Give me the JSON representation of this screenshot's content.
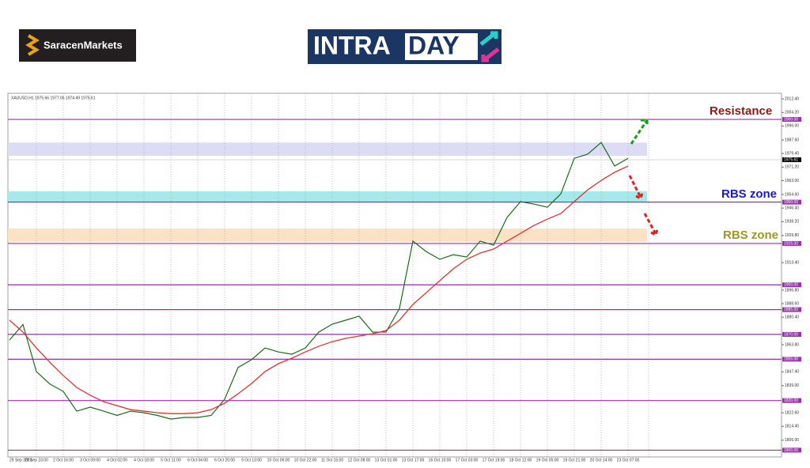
{
  "header": {
    "brand": "SaracenMarkets",
    "banner_a": "INTRA",
    "banner_b": "DAY"
  },
  "chart_data": {
    "type": "line",
    "title": "XAUUSD,H1 1975.66 1977.05 1974.49 1975.61",
    "categories": [
      "29 Sep 2023",
      null,
      "29 Sep 23:00",
      null,
      "2 Oct 16:00",
      null,
      "3 Oct 09:00",
      null,
      "4 Oct 02:00",
      null,
      "4 Oct 18:00",
      null,
      "5 Oct 11:00",
      null,
      "6 Oct 04:00",
      null,
      "6 Oct 20:00",
      null,
      "9 Oct 13:00",
      null,
      "10 Oct 06:00",
      null,
      "10 Oct 22:00",
      null,
      "11 Oct 15:00",
      null,
      "12 Oct 08:00",
      null,
      "13 Oct 01:00",
      null,
      "13 Oct 17:00",
      null,
      "16 Oct 10:00",
      null,
      "17 Oct 03:00",
      null,
      "17 Oct 19:00",
      null,
      "18 Oct 12:00",
      null,
      "19 Oct 05:00",
      null,
      "19 Oct 21:00",
      null,
      "20 Oct 14:00",
      null,
      "23 Oct 07:00"
    ],
    "series": [
      {
        "color": "#1a6b1a",
        "values": [
          1866.6,
          1876,
          1847.5,
          1840,
          1835.5,
          1823.6,
          1826,
          1823.6,
          1821,
          1823.6,
          1822.6,
          1821,
          1818.8,
          1819.8,
          1819.8,
          1821,
          1830.8,
          1850,
          1854.7,
          1861.8,
          1859.4,
          1858,
          1861.8,
          1871.4,
          1876.2,
          1878.6,
          1881,
          1871.4,
          1871.4,
          1885.7,
          1926.4,
          1920,
          1915.4,
          1918.2,
          1916.8,
          1926.4,
          1924,
          1940.7,
          1950.3,
          1948.8,
          1946.9,
          1955,
          1976.5,
          1979,
          1986.1,
          1971.8,
          1976.5
        ]
      },
      {
        "color": "#e03030",
        "values": [
          1878.6,
          1871.4,
          1861.8,
          1853.2,
          1845.1,
          1837.9,
          1833.2,
          1829.3,
          1826.9,
          1824.5,
          1823.6,
          1822.6,
          1822.1,
          1822.1,
          1822.6,
          1824.5,
          1828.4,
          1834.1,
          1840.3,
          1847.5,
          1852.3,
          1855.6,
          1859.4,
          1862.8,
          1865.6,
          1867.6,
          1869,
          1870.4,
          1872.3,
          1878.6,
          1888.1,
          1895.3,
          1902.5,
          1909.6,
          1915.4,
          1919.2,
          1921.6,
          1926.4,
          1931.1,
          1935.9,
          1939.7,
          1943.1,
          1950.3,
          1957.4,
          1963.1,
          1968,
          1971.8
        ]
      }
    ],
    "ylim": [
      1795.9,
      2015.8
    ],
    "yticks": [
      {
        "value": 2012.4,
        "label": "2012.40"
      },
      {
        "value": 2004.2,
        "label": "2004.20"
      },
      {
        "value": 1996,
        "label": "1996.00"
      },
      {
        "value": 1987.6,
        "label": "1987.60"
      },
      {
        "value": 1979.4,
        "label": "1979.40"
      },
      {
        "value": 1971.2,
        "label": "1971.20"
      },
      {
        "value": 1963,
        "label": "1963.00"
      },
      {
        "value": 1954.6,
        "label": "1954.60"
      },
      {
        "value": 1946.4,
        "label": "1946.40"
      },
      {
        "value": 1938.2,
        "label": "1938.20"
      },
      {
        "value": 1929.8,
        "label": "1929.80"
      },
      {
        "value": 1913.4,
        "label": "1913.40"
      },
      {
        "value": 1896.8,
        "label": "1896.80"
      },
      {
        "value": 1888.6,
        "label": "1888.60"
      },
      {
        "value": 1880.4,
        "label": "1880.40"
      },
      {
        "value": 1863.8,
        "label": "1863.80"
      },
      {
        "value": 1847.4,
        "label": "1847.40"
      },
      {
        "value": 1839,
        "label": "1839.00"
      },
      {
        "value": 1822.6,
        "label": "1822.60"
      },
      {
        "value": 1814.4,
        "label": "1814.40"
      },
      {
        "value": 1806,
        "label": "1806.00"
      }
    ],
    "levels": [
      {
        "value": 2000,
        "label": "2000.00"
      },
      {
        "value": 1950,
        "label": "1950.00"
      },
      {
        "value": 1925,
        "label": "1925.00"
      },
      {
        "value": 1900,
        "label": "1900.00"
      },
      {
        "value": 1885,
        "label": "1885.00"
      },
      {
        "value": 1870,
        "label": "1870.00"
      },
      {
        "value": 1855,
        "label": "1855.00"
      },
      {
        "value": 1830,
        "label": "1830.00"
      },
      {
        "value": 1800,
        "label": "1800.00"
      }
    ],
    "level_color": "#9a2fb0",
    "current_price": {
      "value": 1975.61,
      "label": "1975.61"
    },
    "zones": [
      {
        "range": [
          1978,
          1986
        ],
        "color": "#dcdcf5"
      },
      {
        "range": [
          1950,
          1956.5
        ],
        "color": "#a6e8ec"
      },
      {
        "range": [
          1926,
          1934
        ],
        "color": "#fbe2c4"
      }
    ],
    "annotations": [
      {
        "text": "Resistance",
        "color": "#8b1a1a"
      },
      {
        "text": "RBS zone",
        "color": "#1a1acc"
      },
      {
        "text": "RBS zone",
        "color": "#9a9a20"
      }
    ],
    "grid": true
  }
}
